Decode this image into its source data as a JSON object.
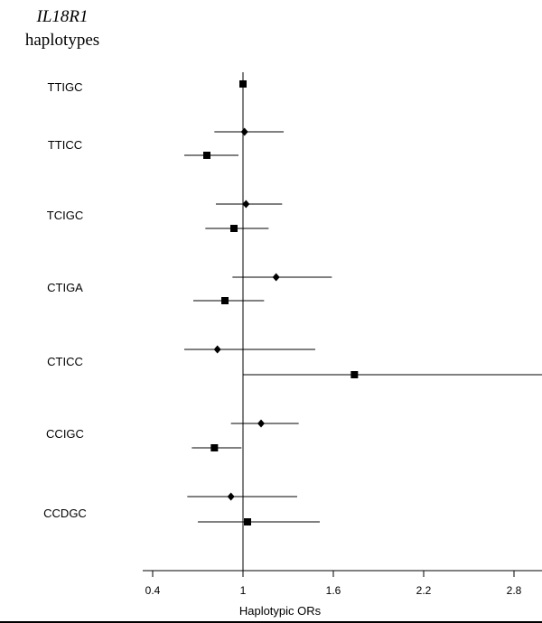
{
  "chart_data": {
    "type": "forest",
    "title_gene": "IL18R1",
    "title_sub": "haplotypes",
    "xlabel": "Haplotypic ORs",
    "xlim": [
      0.4,
      3.2
    ],
    "xticks": [
      "0.4",
      "1",
      "1.6",
      "2.2",
      "2.8"
    ],
    "xtick_values": [
      0.4,
      1.0,
      1.6,
      2.2,
      2.8
    ],
    "reference_line": 1,
    "marker_styles": {
      "square": "square",
      "diamond": "diamond"
    },
    "groups": [
      {
        "label": "TTIGC",
        "points": [
          {
            "marker": "square",
            "or": 1.0,
            "lo": 1.0,
            "hi": 1.0
          }
        ]
      },
      {
        "label": "TTICC",
        "points": [
          {
            "marker": "diamond",
            "or": 1.01,
            "lo": 0.81,
            "hi": 1.27
          },
          {
            "marker": "square",
            "or": 0.76,
            "lo": 0.61,
            "hi": 0.97
          }
        ]
      },
      {
        "label": "TCIGC",
        "points": [
          {
            "marker": "diamond",
            "or": 1.02,
            "lo": 0.82,
            "hi": 1.26
          },
          {
            "marker": "square",
            "or": 0.94,
            "lo": 0.75,
            "hi": 1.17
          }
        ]
      },
      {
        "label": "CTIGA",
        "points": [
          {
            "marker": "diamond",
            "or": 1.22,
            "lo": 0.93,
            "hi": 1.59
          },
          {
            "marker": "square",
            "or": 0.88,
            "lo": 0.67,
            "hi": 1.14
          }
        ]
      },
      {
        "label": "CTICC",
        "points": [
          {
            "marker": "diamond",
            "or": 0.83,
            "lo": 0.61,
            "hi": 1.48
          },
          {
            "marker": "square",
            "or": 1.74,
            "lo": 1.0,
            "hi": 3.03
          }
        ]
      },
      {
        "label": "CCIGC",
        "points": [
          {
            "marker": "diamond",
            "or": 1.12,
            "lo": 0.92,
            "hi": 1.37
          },
          {
            "marker": "square",
            "or": 0.81,
            "lo": 0.66,
            "hi": 0.99
          }
        ]
      },
      {
        "label": "CCDGC",
        "points": [
          {
            "marker": "diamond",
            "or": 0.92,
            "lo": 0.63,
            "hi": 1.36
          },
          {
            "marker": "square",
            "or": 1.03,
            "lo": 0.7,
            "hi": 1.51
          }
        ]
      }
    ]
  }
}
